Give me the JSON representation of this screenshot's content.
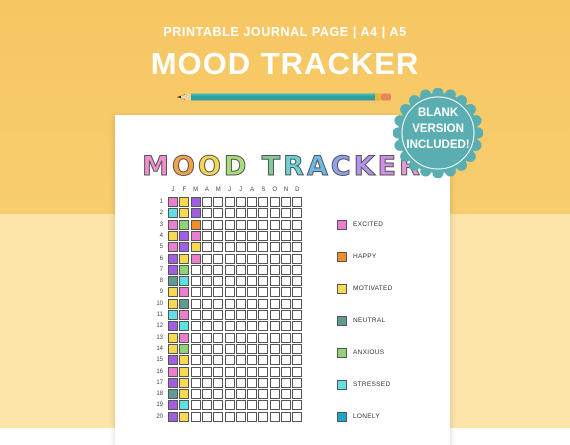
{
  "header": {
    "subtitle": "PRINTABLE JOURNAL PAGE | A4 | A5",
    "title": "MOOD TRACKER"
  },
  "badge": {
    "line1": "BLANK",
    "line2": "VERSION",
    "line3": "INCLUDED!"
  },
  "paper": {
    "title_letters": [
      {
        "ch": "M",
        "color": "#ef8fd0"
      },
      {
        "ch": "O",
        "color": "#f5a04a"
      },
      {
        "ch": "O",
        "color": "#f6d64e"
      },
      {
        "ch": "D",
        "color": "#a9dd7a"
      },
      {
        "ch": " ",
        "color": "#ffffff"
      },
      {
        "ch": "T",
        "color": "#7fc99a"
      },
      {
        "ch": "R",
        "color": "#6ad3d8"
      },
      {
        "ch": "A",
        "color": "#6fb8e8"
      },
      {
        "ch": "C",
        "color": "#8fa3ec"
      },
      {
        "ch": "K",
        "color": "#b592ec"
      },
      {
        "ch": "E",
        "color": "#cf8fe8"
      },
      {
        "ch": "R",
        "color": "#e79ad8"
      }
    ],
    "months": [
      "J",
      "F",
      "M",
      "A",
      "M",
      "J",
      "J",
      "A",
      "S",
      "O",
      "N",
      "D"
    ],
    "days": [
      "1",
      "2",
      "3",
      "4",
      "5",
      "6",
      "7",
      "8",
      "9",
      "10",
      "11",
      "12",
      "13",
      "14",
      "15",
      "16",
      "17",
      "18",
      "19",
      "20"
    ],
    "mood_colors": {
      "excited": "#ea7fd0",
      "happy": "#f48c2a",
      "motivated": "#f7da4f",
      "neutral": "#5f9a93",
      "anxious": "#8fd278",
      "stressed": "#5fe0e2",
      "lonely": "#1aa6c9",
      "sad": "#a15ee0"
    },
    "jan": [
      "excited",
      "stressed",
      "excited",
      "motivated",
      "excited",
      "sad",
      "sad",
      "neutral",
      "motivated",
      "motivated",
      "stressed",
      "sad",
      "motivated",
      "motivated",
      "sad",
      "excited",
      "sad",
      "neutral",
      "sad",
      "sad"
    ],
    "feb": [
      "motivated",
      "motivated",
      "anxious",
      "sad",
      "sad",
      "motivated",
      "anxious",
      "stressed",
      "excited",
      "neutral",
      "excited",
      "stressed",
      "excited",
      "anxious",
      "motivated",
      "motivated",
      "motivated",
      "motivated",
      "stressed",
      "motivated"
    ],
    "mar": [
      "sad",
      "sad",
      "happy",
      "excited",
      "motivated",
      "excited",
      "",
      "",
      "",
      "",
      "",
      "",
      "",
      "",
      "",
      "",
      "",
      "",
      "",
      ""
    ],
    "legend": [
      {
        "mood": "excited",
        "label": "EXCITED"
      },
      {
        "mood": "happy",
        "label": "HAPPY"
      },
      {
        "mood": "motivated",
        "label": "MOTIVATED"
      },
      {
        "mood": "neutral",
        "label": "NEUTRAL"
      },
      {
        "mood": "anxious",
        "label": "ANXIOUS"
      },
      {
        "mood": "stressed",
        "label": "STRESSED"
      },
      {
        "mood": "lonely",
        "label": "LONELY"
      }
    ]
  }
}
